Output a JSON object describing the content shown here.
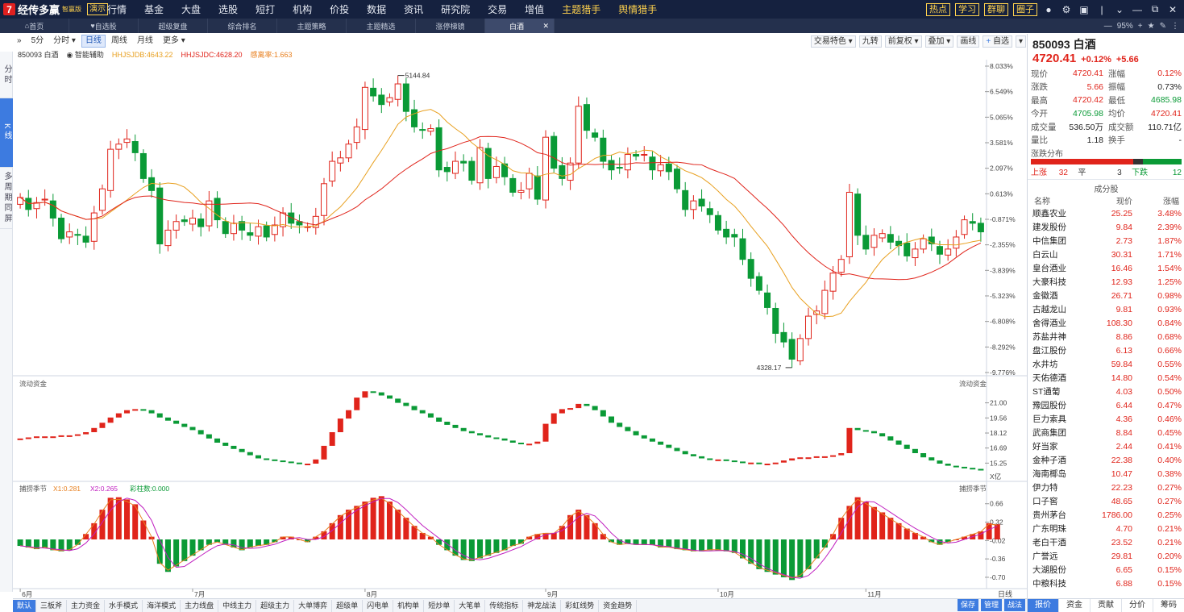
{
  "app": {
    "logo_text": "经传多赢",
    "edition": "智赢版",
    "demo_badge": "演示",
    "menu": [
      "行情",
      "基金",
      "大盘",
      "选股",
      "短打",
      "机构",
      "价投",
      "数据",
      "资讯",
      "研究院",
      "交易",
      "增值",
      "主题猎手",
      "舆情猎手"
    ],
    "right_buttons": [
      "热点",
      "学习",
      "群聊",
      "圈子"
    ]
  },
  "tabs": [
    {
      "label": "首页",
      "icon": "home-icon"
    },
    {
      "label": "自选股",
      "icon": "heart-icon"
    },
    {
      "label": "超级复盘"
    },
    {
      "label": "综合排名"
    },
    {
      "label": "主题策略"
    },
    {
      "label": "主题精选"
    },
    {
      "label": "涨停梯镜"
    },
    {
      "label": "白酒",
      "active": true
    }
  ],
  "zoom": "95%",
  "left_rail": [
    {
      "label": "分时",
      "active": false
    },
    {
      "label": "K线",
      "active": true
    },
    {
      "label": "多周期同屏",
      "active": false
    }
  ],
  "chart_toolbar": {
    "left": [
      "5分",
      "分时",
      "日线",
      "周线",
      "月线",
      "更多"
    ],
    "active": "日线",
    "right": [
      "交易特色",
      "九转",
      "前复权",
      "叠加",
      "画线",
      "自选"
    ]
  },
  "legend": {
    "code_name": "850093 白酒",
    "assist": "智能辅助",
    "ma1": "HHJSJDB:4643.22",
    "ma2": "HHJSJDC:4628.20",
    "ma3": "感离率:1.663"
  },
  "bottom_tabs": [
    "默认",
    "三板斧",
    "主力资金",
    "水手模式",
    "海洋模式",
    "主力线盘",
    "中线主力",
    "超级主力",
    "大单博弈",
    "超级单",
    "闪电单",
    "机构单",
    "短炒单",
    "大笔单",
    "传统指标",
    "神龙战法",
    "彩虹线势",
    "资金趋势"
  ],
  "bottom_right_buttons": [
    "保存",
    "管理",
    "战法"
  ],
  "panel": {
    "title": "850093 白酒",
    "price": "4720.41",
    "change_pct": "+0.12%",
    "change": "+5.66",
    "quote": [
      {
        "k": "现价",
        "v": "4720.41",
        "vc": "red",
        "k2": "涨幅",
        "v2": "0.12%",
        "v2c": "red"
      },
      {
        "k": "涨跌",
        "v": "5.66",
        "vc": "red",
        "k2": "振幅",
        "v2": "0.73%",
        "v2c": "blk"
      },
      {
        "k": "最高",
        "v": "4720.42",
        "vc": "red",
        "k2": "最低",
        "v2": "4685.98",
        "v2c": "green"
      },
      {
        "k": "今开",
        "v": "4705.98",
        "vc": "green",
        "k2": "均价",
        "v2": "4720.41",
        "v2c": "red"
      },
      {
        "k": "成交量",
        "v": "536.50万",
        "vc": "blk",
        "k2": "成交额",
        "v2": "110.71亿",
        "v2c": "blk"
      },
      {
        "k": "量比",
        "v": "1.18",
        "vc": "blk",
        "k2": "换手",
        "v2": "-",
        "v2c": "blk"
      }
    ],
    "dist_label": "涨跌分布",
    "dist": {
      "up_label": "上涨",
      "up": "32",
      "flat_label": "平",
      "flat": "3",
      "down_label": "下跌",
      "down": "12"
    },
    "cons_title": "成分股",
    "cons_cols": [
      "名称",
      "现价",
      "涨幅"
    ],
    "constituents": [
      {
        "n": "顺鑫农业",
        "p": "25.25",
        "c": "3.48%"
      },
      {
        "n": "建发股份",
        "p": "9.84",
        "c": "2.39%"
      },
      {
        "n": "中信集团",
        "p": "2.73",
        "c": "1.87%"
      },
      {
        "n": "白云山",
        "p": "30.31",
        "c": "1.71%"
      },
      {
        "n": "皇台酒业",
        "p": "16.46",
        "c": "1.54%"
      },
      {
        "n": "大豪科技",
        "p": "12.93",
        "c": "1.25%"
      },
      {
        "n": "金徽酒",
        "p": "26.71",
        "c": "0.98%"
      },
      {
        "n": "古越龙山",
        "p": "9.81",
        "c": "0.93%"
      },
      {
        "n": "舍得酒业",
        "p": "108.30",
        "c": "0.84%"
      },
      {
        "n": "苏盐井神",
        "p": "8.86",
        "c": "0.68%"
      },
      {
        "n": "盘江股份",
        "p": "6.13",
        "c": "0.66%"
      },
      {
        "n": "水井坊",
        "p": "59.84",
        "c": "0.55%"
      },
      {
        "n": "天佑德酒",
        "p": "14.80",
        "c": "0.54%"
      },
      {
        "n": "ST通葡",
        "p": "4.03",
        "c": "0.50%"
      },
      {
        "n": "豫园股份",
        "p": "6.44",
        "c": "0.47%"
      },
      {
        "n": "巨力索具",
        "p": "4.36",
        "c": "0.46%"
      },
      {
        "n": "武商集团",
        "p": "8.84",
        "c": "0.45%"
      },
      {
        "n": "好当家",
        "p": "2.44",
        "c": "0.41%"
      },
      {
        "n": "金种子酒",
        "p": "22.38",
        "c": "0.40%"
      },
      {
        "n": "海南椰岛",
        "p": "10.47",
        "c": "0.38%"
      },
      {
        "n": "伊力特",
        "p": "22.23",
        "c": "0.27%"
      },
      {
        "n": "口子窖",
        "p": "48.65",
        "c": "0.27%"
      },
      {
        "n": "贵州茅台",
        "p": "1786.00",
        "c": "0.25%"
      },
      {
        "n": "广东明珠",
        "p": "4.70",
        "c": "0.21%"
      },
      {
        "n": "老白干酒",
        "p": "23.52",
        "c": "0.21%"
      },
      {
        "n": "广誉远",
        "p": "29.81",
        "c": "0.20%"
      },
      {
        "n": "大湖股份",
        "p": "6.65",
        "c": "0.15%"
      },
      {
        "n": "中粮科技",
        "p": "6.88",
        "c": "0.15%"
      }
    ],
    "bottom_tabs": [
      "报价",
      "资金",
      "贡献",
      "分价",
      "筹码"
    ]
  },
  "chart_data": {
    "type": "candlestick",
    "price_axis_pct": [
      "8.033%",
      "6.549%",
      "5.065%",
      "3.581%",
      "2.097%",
      "0.613%",
      "-0.871%",
      "-2.355%",
      "-3.839%",
      "-5.323%",
      "-6.808%",
      "-8.292%",
      "-9.776%"
    ],
    "high_label": "5144.84",
    "low_label": "4328.17",
    "months": [
      "6月",
      "7月",
      "8月",
      "9月",
      "10月",
      "11月"
    ],
    "flow_title": "流动资金",
    "flow_axis": [
      "21.00",
      "19.56",
      "18.12",
      "16.69",
      "15.25"
    ],
    "flow_unit": "X亿",
    "osc_title": "捕捞季节",
    "osc_legend": {
      "x1": "X1:0.281",
      "x2": "X2:0.265",
      "bar": "彩柱数:0.000"
    },
    "osc_axis": [
      "0.66",
      "0.32",
      "-0.02",
      "-0.36",
      "-0.70"
    ],
    "date_label": "日线",
    "close_pct": [
      0.4,
      -0.3,
      0.1,
      0.3,
      -0.8,
      -2.0,
      -1.6,
      -1.8,
      -2.2,
      -0.5,
      0.9,
      3.2,
      3.5,
      3.8,
      3.0,
      1.5,
      0.8,
      -2.3,
      -1.5,
      -1.0,
      -1.0,
      -0.8,
      -1.3,
      0.2,
      -0.9,
      -1.7,
      -1.1,
      -1.5,
      -1.8,
      -1.3,
      -1.9,
      -1.2,
      -0.5,
      -1.1,
      -1.2,
      -1.3,
      -0.7,
      1.2,
      2.5,
      2.7,
      3.5,
      4.5,
      6.8,
      6.3,
      5.8,
      6.2,
      7.0,
      5.4,
      4.5,
      4.3,
      4.4,
      2.0,
      1.9,
      2.5,
      2.4,
      1.4,
      3.3,
      1.5,
      2.2,
      1.6,
      0.7,
      0.8,
      1.8,
      0.3,
      3.9,
      2.1,
      1.5,
      2.4,
      5.7,
      4.3,
      3.9,
      2.5,
      2.0,
      2.1,
      2.9,
      2.8,
      2.9,
      2.0,
      2.3,
      1.9,
      0.9,
      -0.3,
      0.2,
      -0.1,
      -0.6,
      -1.5,
      -1.9,
      -1.9,
      -3.2,
      -4.3,
      -5.0,
      -6.0,
      -7.5,
      -8.0,
      -9.0,
      -7.8,
      -6.5,
      -6.2,
      -5.0,
      -4.0,
      -3.2,
      0.7,
      -1.8,
      -2.6,
      -1.8,
      -1.7,
      -2.2,
      -2.4,
      -3.0,
      -2.6,
      -2.0,
      -2.3,
      -2.9,
      -2.6,
      -1.9,
      -0.9,
      -1.1,
      -1.6
    ],
    "flow": [
      17.6,
      17.7,
      17.8,
      17.8,
      17.8,
      17.9,
      17.9,
      18.0,
      18.2,
      18.6,
      19.1,
      19.6,
      20.0,
      20.3,
      20.4,
      20.3,
      20.0,
      19.6,
      19.3,
      19.0,
      18.7,
      18.4,
      18.0,
      17.6,
      17.2,
      16.9,
      16.6,
      16.3,
      16.0,
      15.7,
      15.6,
      15.5,
      15.4,
      15.3,
      15.2,
      15.2,
      15.6,
      16.9,
      18.2,
      19.5,
      20.3,
      21.5,
      22.1,
      22.0,
      21.7,
      21.4,
      21.0,
      20.7,
      20.3,
      20.0,
      19.6,
      19.2,
      18.9,
      18.6,
      18.3,
      18.1,
      17.9,
      17.7,
      17.6,
      17.4,
      17.2,
      17.1,
      17.1,
      17.3,
      19.0,
      20.0,
      20.4,
      20.5,
      20.9,
      20.7,
      20.3,
      19.7,
      19.1,
      18.7,
      18.3,
      17.9,
      17.6,
      17.3,
      17.0,
      16.7,
      16.4,
      16.1,
      15.9,
      15.7,
      15.6,
      15.6,
      15.5,
      15.4,
      15.3,
      15.3,
      15.2,
      15.2,
      15.3,
      15.5,
      15.7,
      15.8,
      15.8,
      15.9,
      15.9,
      16.0,
      16.2,
      18.6,
      18.4,
      18.3,
      18.1,
      17.8,
      17.4,
      17.0,
      16.6,
      16.2,
      15.8,
      15.5,
      15.2,
      15.0,
      14.9,
      14.8,
      14.7,
      14.6
    ],
    "osc": [
      -0.12,
      -0.15,
      -0.18,
      -0.15,
      -0.2,
      -0.22,
      -0.2,
      -0.1,
      0.1,
      0.3,
      0.55,
      0.77,
      0.78,
      0.74,
      0.65,
      0.35,
      0.05,
      -0.45,
      -0.6,
      -0.5,
      -0.4,
      -0.3,
      -0.2,
      -0.1,
      -0.05,
      -0.1,
      -0.15,
      -0.2,
      -0.15,
      -0.12,
      -0.1,
      -0.05,
      0.05,
      0.05,
      0.0,
      -0.05,
      0.05,
      0.15,
      0.3,
      0.45,
      0.55,
      0.62,
      0.7,
      0.77,
      0.8,
      0.7,
      0.55,
      0.4,
      0.25,
      0.12,
      0.05,
      -0.1,
      -0.2,
      -0.3,
      -0.38,
      -0.4,
      -0.35,
      -0.3,
      -0.25,
      -0.2,
      -0.12,
      -0.08,
      0.05,
      0.1,
      0.12,
      0.12,
      0.25,
      0.45,
      0.55,
      0.45,
      0.3,
      0.1,
      -0.05,
      -0.1,
      -0.08,
      -0.1,
      -0.1,
      -0.1,
      -0.15,
      -0.15,
      -0.18,
      -0.2,
      -0.22,
      -0.22,
      -0.2,
      -0.2,
      -0.22,
      -0.25,
      -0.35,
      -0.45,
      -0.55,
      -0.6,
      -0.65,
      -0.7,
      -0.75,
      -0.7,
      -0.55,
      -0.35,
      -0.15,
      0.1,
      0.4,
      0.62,
      0.78,
      0.7,
      0.6,
      0.5,
      0.4,
      0.3,
      0.2,
      0.12,
      0.05,
      -0.05,
      -0.1,
      -0.05,
      0.0,
      0.05,
      0.1,
      0.15,
      0.3,
      0.28
    ]
  }
}
